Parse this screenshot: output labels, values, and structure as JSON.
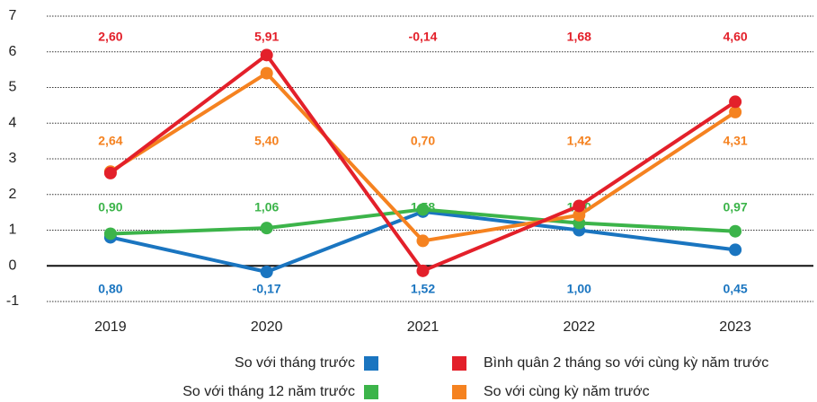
{
  "chart_data": {
    "type": "line",
    "categories": [
      "2019",
      "2020",
      "2021",
      "2022",
      "2023"
    ],
    "ylim": [
      -1,
      7
    ],
    "yticks": [
      -1,
      0,
      1,
      2,
      3,
      4,
      5,
      6,
      7
    ],
    "grid": true,
    "series": [
      {
        "name": "So với tháng trước",
        "color": "#1a75c0",
        "values": [
          0.8,
          -0.17,
          1.52,
          1.0,
          0.45
        ],
        "value_labels": [
          "0,80",
          "-0,17",
          "1,52",
          "1,00",
          "0,45"
        ]
      },
      {
        "name": "So với tháng 12 năm trước",
        "color": "#3cb44a",
        "values": [
          0.9,
          1.06,
          1.58,
          1.2,
          0.97
        ],
        "value_labels": [
          "0,90",
          "1,06",
          "1,58",
          "1,20",
          "0,97"
        ]
      },
      {
        "name": "So với cùng kỳ năm trước",
        "color": "#f58220",
        "values": [
          2.64,
          5.4,
          0.7,
          1.42,
          4.31
        ],
        "value_labels": [
          "2,64",
          "5,40",
          "0,70",
          "1,42",
          "4,31"
        ]
      },
      {
        "name": "Bình quân 2 tháng so với cùng kỳ năm trước",
        "color": "#e3202a",
        "values": [
          2.6,
          5.91,
          -0.14,
          1.68,
          4.6
        ],
        "value_labels": [
          "2,60",
          "5,91",
          "-0,14",
          "1,68",
          "4,60"
        ]
      }
    ]
  }
}
